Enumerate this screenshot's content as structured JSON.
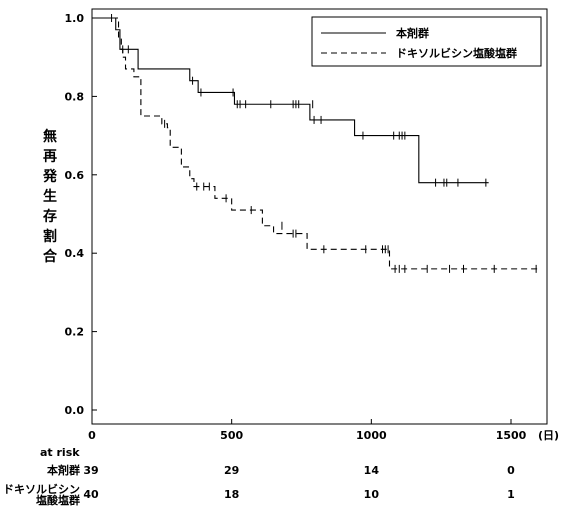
{
  "chart_data": {
    "type": "line",
    "subtype": "kaplan-meier",
    "ylabel": "無再発生存割合",
    "x_unit": "(日)",
    "xlim": [
      0,
      1600
    ],
    "ylim": [
      0.0,
      1.0
    ],
    "x_ticks": [
      0,
      500,
      1000,
      1500
    ],
    "y_ticks": [
      0.0,
      0.2,
      0.4,
      0.6,
      0.8,
      1.0
    ],
    "y_tick_labels": [
      "0.0",
      "0.2",
      "0.4",
      "0.6",
      "0.8",
      "1.0"
    ],
    "grid": false,
    "legend_position": "top-right",
    "series": [
      {
        "name": "本剤群",
        "line_style": "solid",
        "steps": [
          [
            0,
            1.0
          ],
          [
            85,
            0.97
          ],
          [
            100,
            0.92
          ],
          [
            165,
            0.87
          ],
          [
            350,
            0.84
          ],
          [
            380,
            0.81
          ],
          [
            510,
            0.78
          ],
          [
            780,
            0.74
          ],
          [
            940,
            0.7
          ],
          [
            1170,
            0.58
          ],
          [
            1420,
            0.58
          ]
        ],
        "censored": [
          [
            70,
            1.0
          ],
          [
            110,
            0.92
          ],
          [
            130,
            0.92
          ],
          [
            360,
            0.84
          ],
          [
            390,
            0.81
          ],
          [
            505,
            0.81
          ],
          [
            520,
            0.78
          ],
          [
            530,
            0.78
          ],
          [
            550,
            0.78
          ],
          [
            640,
            0.78
          ],
          [
            720,
            0.78
          ],
          [
            730,
            0.78
          ],
          [
            740,
            0.78
          ],
          [
            790,
            0.78
          ],
          [
            795,
            0.74
          ],
          [
            820,
            0.74
          ],
          [
            970,
            0.7
          ],
          [
            1080,
            0.7
          ],
          [
            1100,
            0.7
          ],
          [
            1110,
            0.7
          ],
          [
            1120,
            0.7
          ],
          [
            1230,
            0.58
          ],
          [
            1260,
            0.58
          ],
          [
            1270,
            0.58
          ],
          [
            1310,
            0.58
          ],
          [
            1410,
            0.58
          ]
        ]
      },
      {
        "name": "ドキソルビシン塩酸塩群",
        "line_style": "dashed",
        "steps": [
          [
            0,
            1.0
          ],
          [
            95,
            0.95
          ],
          [
            105,
            0.92
          ],
          [
            110,
            0.9
          ],
          [
            120,
            0.87
          ],
          [
            150,
            0.85
          ],
          [
            175,
            0.75
          ],
          [
            250,
            0.73
          ],
          [
            270,
            0.72
          ],
          [
            280,
            0.67
          ],
          [
            320,
            0.62
          ],
          [
            350,
            0.59
          ],
          [
            365,
            0.57
          ],
          [
            440,
            0.54
          ],
          [
            500,
            0.51
          ],
          [
            610,
            0.47
          ],
          [
            650,
            0.45
          ],
          [
            770,
            0.41
          ],
          [
            1065,
            0.36
          ],
          [
            1600,
            0.36
          ]
        ],
        "censored": [
          [
            260,
            0.73
          ],
          [
            375,
            0.57
          ],
          [
            400,
            0.57
          ],
          [
            420,
            0.57
          ],
          [
            480,
            0.54
          ],
          [
            570,
            0.51
          ],
          [
            680,
            0.47
          ],
          [
            720,
            0.45
          ],
          [
            730,
            0.45
          ],
          [
            830,
            0.41
          ],
          [
            980,
            0.41
          ],
          [
            1040,
            0.41
          ],
          [
            1050,
            0.41
          ],
          [
            1060,
            0.41
          ],
          [
            1085,
            0.36
          ],
          [
            1100,
            0.36
          ],
          [
            1120,
            0.36
          ],
          [
            1200,
            0.36
          ],
          [
            1280,
            0.36
          ],
          [
            1330,
            0.36
          ],
          [
            1440,
            0.36
          ],
          [
            1590,
            0.36
          ]
        ]
      }
    ],
    "at_risk": {
      "title": "at risk",
      "times": [
        0,
        500,
        1000,
        1500
      ],
      "rows": [
        {
          "label": "本剤群",
          "label_lines": [
            "本剤群"
          ],
          "counts": [
            39,
            29,
            14,
            0
          ]
        },
        {
          "label": "ドキソルビシン塩酸塩群",
          "label_lines": [
            "ドキソルビシン",
            "塩酸塩群"
          ],
          "counts": [
            40,
            18,
            10,
            1
          ]
        }
      ]
    }
  }
}
